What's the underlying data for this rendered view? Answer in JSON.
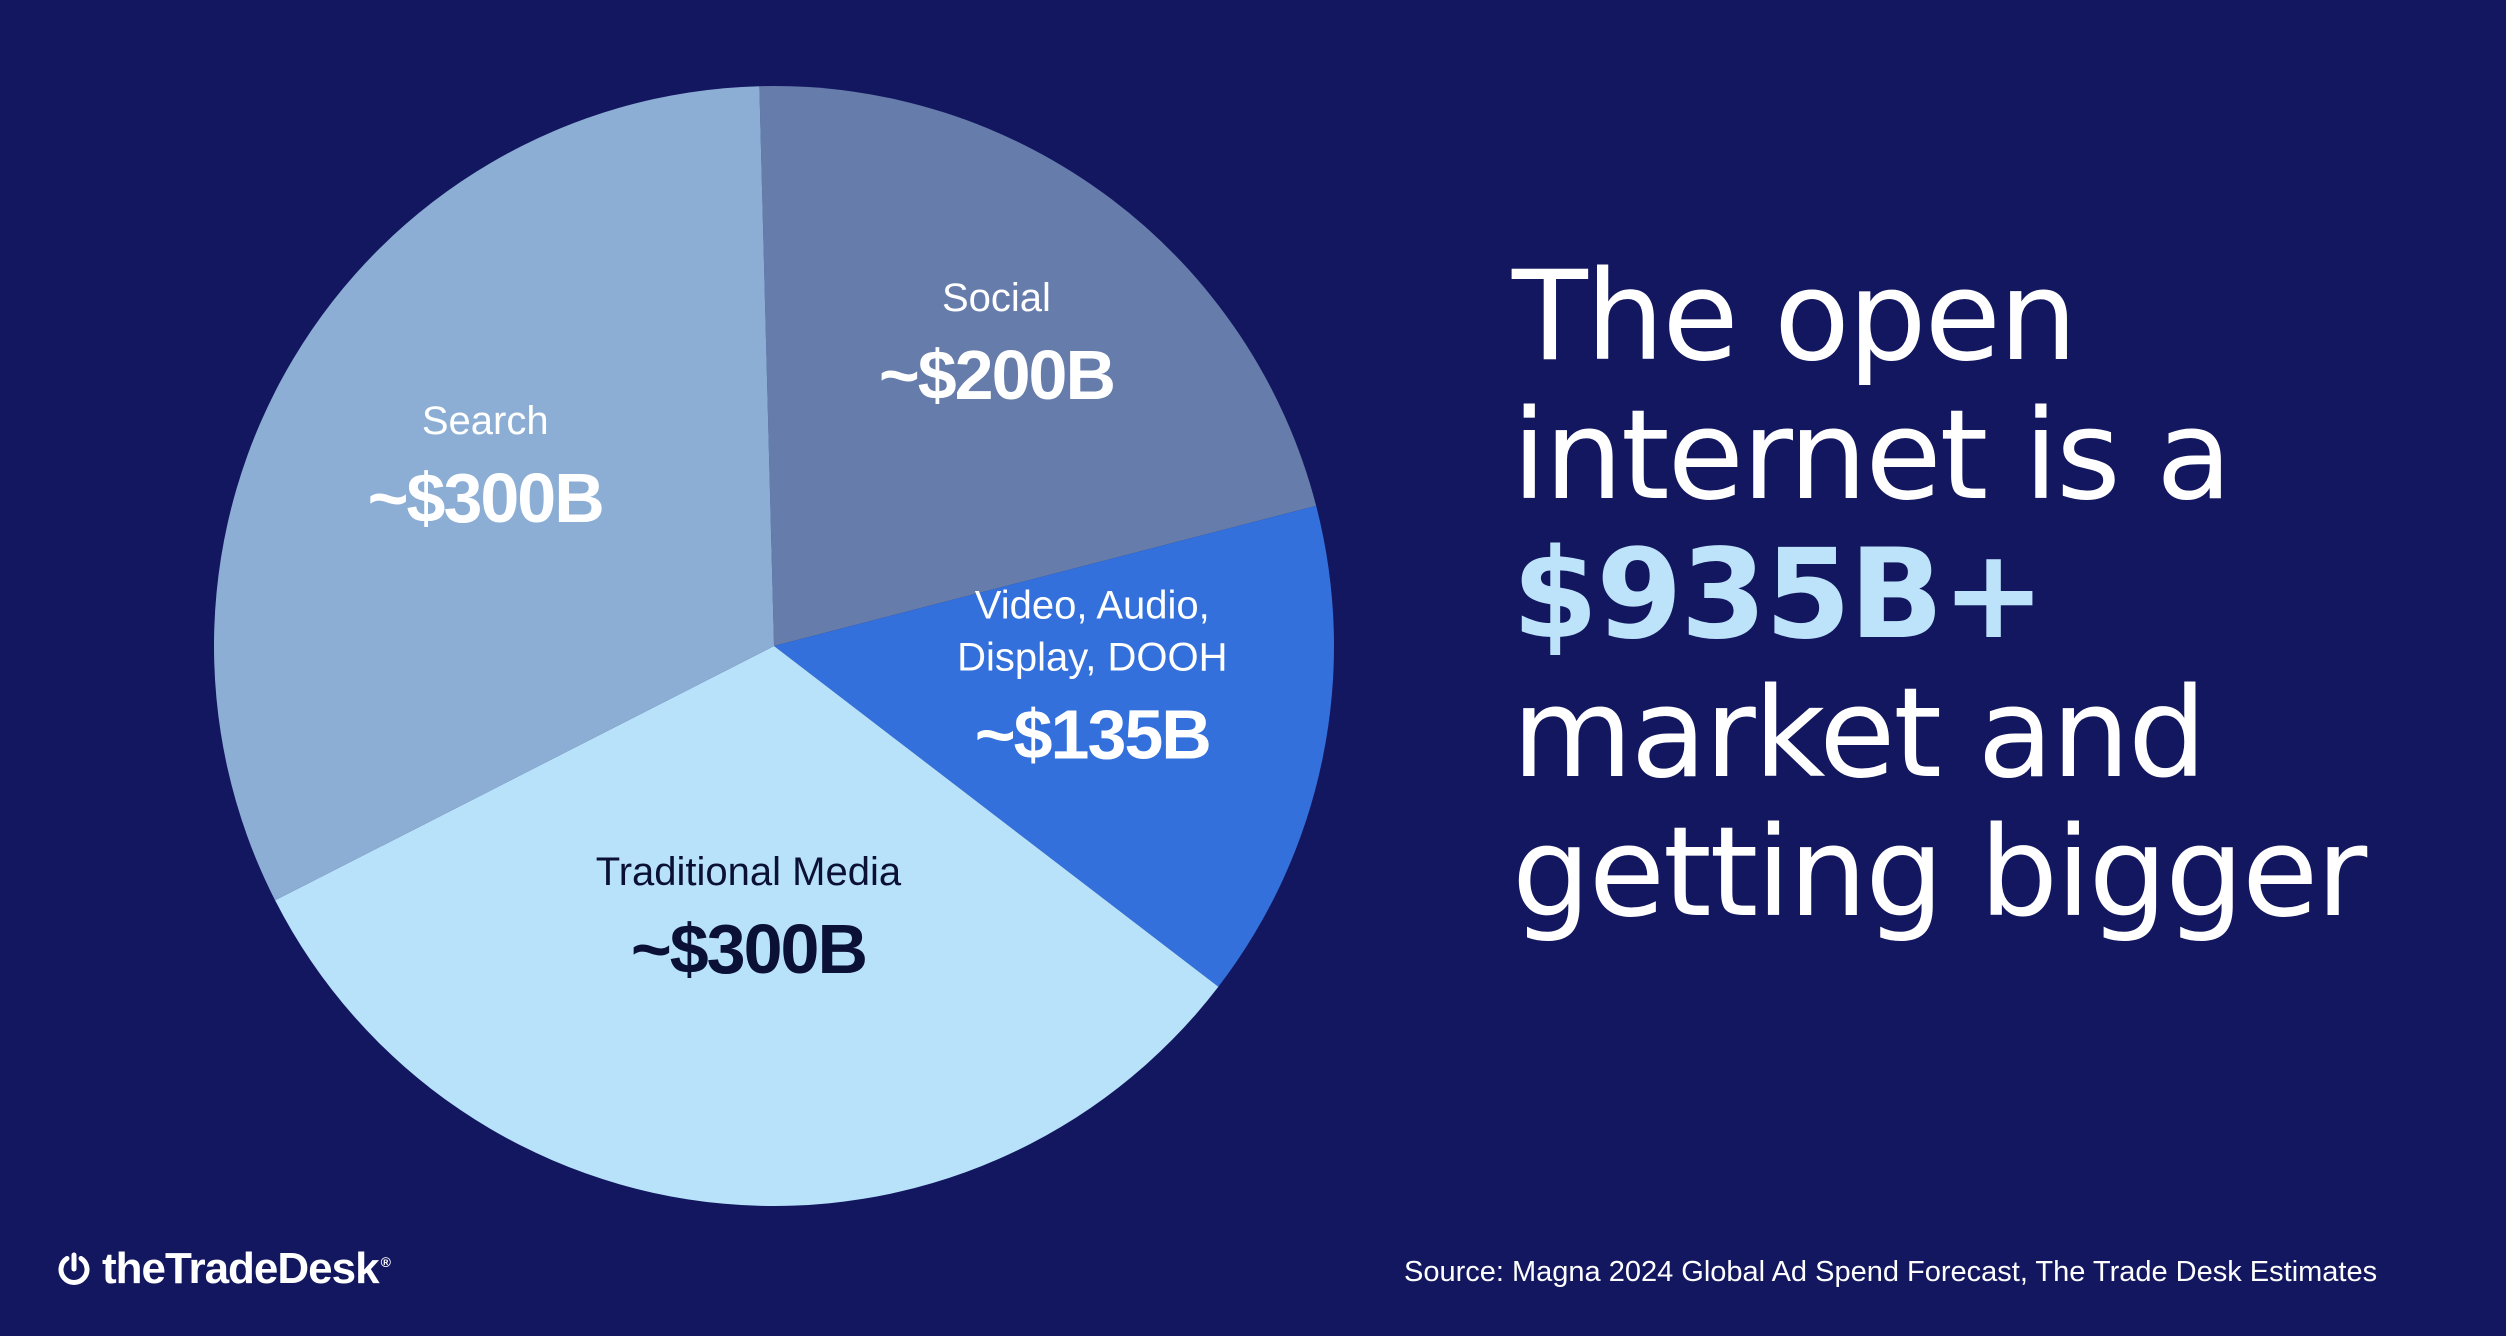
{
  "chart_data": {
    "type": "pie",
    "start_angle_deg": -1.5,
    "direction": "clockwise",
    "slices": [
      {
        "label": "Social",
        "value_label": "~$200B",
        "value": 200,
        "color": "#667cab",
        "label_color": "#ffffff"
      },
      {
        "label": "Video, Audio, Display, DOOH",
        "label_lines": [
          "Video, Audio,",
          "Display, DOOH"
        ],
        "value_label": "~$135B",
        "value": 135,
        "color": "#3370db",
        "label_color": "#ffffff"
      },
      {
        "label": "Traditional Media",
        "value_label": "~$300B",
        "value": 300,
        "color": "#b8e1fa",
        "label_color": "#0b1036"
      },
      {
        "label": "Search",
        "value_label": "~$300B",
        "value": 300,
        "color": "#8caed5",
        "label_color": "#ffffff"
      }
    ]
  },
  "headline": {
    "line1": "The open",
    "line2": "internet is a",
    "line3": "$935B+",
    "line4": "market and",
    "line5": "getting bigger"
  },
  "colors": {
    "background": "#13175f",
    "accent": "#bde3fb",
    "text": "#ffffff"
  },
  "logo": {
    "text": "theTradeDesk",
    "registered": "®"
  },
  "source": "Source: Magna 2024 Global Ad Spend Forecast, The Trade Desk Estimates"
}
